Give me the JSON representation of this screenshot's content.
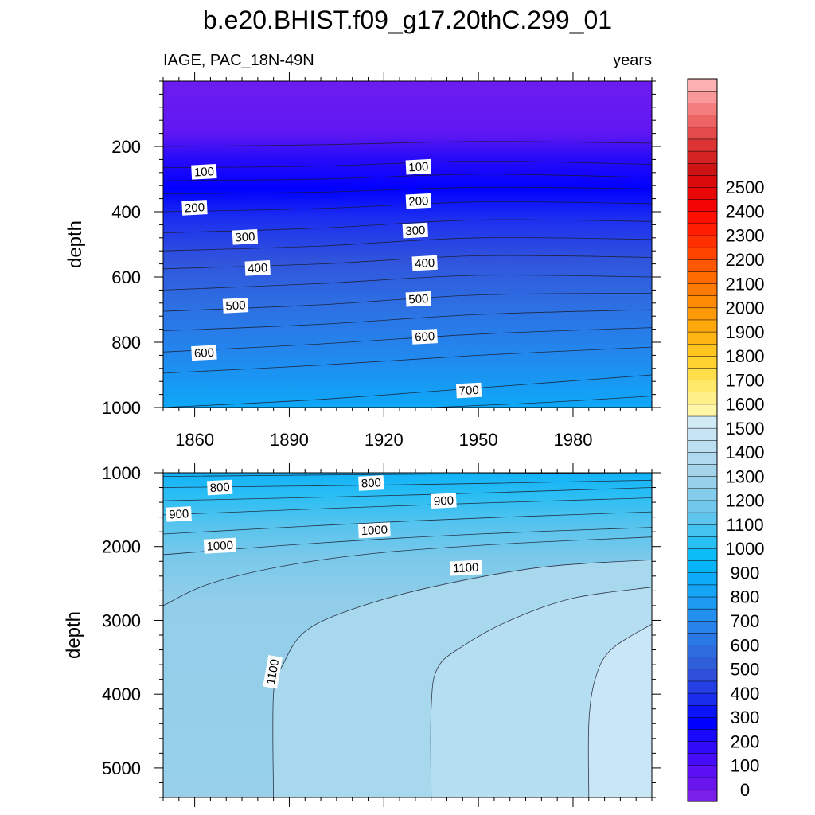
{
  "title": "b.e20.BHIST.f09_g17.20thC.299_01",
  "chart_data": [
    {
      "type": "contour",
      "panel": "upper",
      "left_label": "IAGE, PAC_18N-49N",
      "right_label": "years",
      "ylabel": "depth",
      "xlabel": "",
      "xlim": [
        1850,
        2005
      ],
      "ylim": [
        0,
        1000
      ],
      "y_inverted": true,
      "x_ticks": [
        1860,
        1890,
        1920,
        1950,
        1980
      ],
      "y_ticks": [
        200,
        400,
        600,
        800,
        1000
      ],
      "contour_interval": 25,
      "isolines": [
        {
          "level": 50,
          "x": [
            1850,
            1900,
            1950,
            2005
          ],
          "y": [
            200,
            195,
            185,
            190
          ]
        },
        {
          "level": 100,
          "x": [
            1850,
            1900,
            1950,
            2005
          ],
          "y": [
            265,
            260,
            245,
            255
          ]
        },
        {
          "level": 150,
          "x": [
            1850,
            1900,
            1950,
            2005
          ],
          "y": [
            305,
            300,
            285,
            295
          ]
        },
        {
          "level": 200,
          "x": [
            1850,
            1900,
            1950,
            2005
          ],
          "y": [
            345,
            340,
            325,
            330
          ]
        },
        {
          "level": 250,
          "x": [
            1850,
            1900,
            1950,
            2005
          ],
          "y": [
            400,
            390,
            370,
            375
          ]
        },
        {
          "level": 300,
          "x": [
            1850,
            1900,
            1950,
            2005
          ],
          "y": [
            465,
            450,
            425,
            430
          ]
        },
        {
          "level": 350,
          "x": [
            1850,
            1900,
            1950,
            2005
          ],
          "y": [
            520,
            505,
            480,
            485
          ]
        },
        {
          "level": 400,
          "x": [
            1850,
            1900,
            1950,
            2005
          ],
          "y": [
            575,
            560,
            535,
            540
          ]
        },
        {
          "level": 450,
          "x": [
            1850,
            1900,
            1950,
            2005
          ],
          "y": [
            640,
            620,
            595,
            600
          ]
        },
        {
          "level": 500,
          "x": [
            1850,
            1900,
            1950,
            2005
          ],
          "y": [
            705,
            685,
            655,
            650
          ]
        },
        {
          "level": 550,
          "x": [
            1850,
            1900,
            1950,
            2005
          ],
          "y": [
            765,
            745,
            715,
            700
          ]
        },
        {
          "level": 600,
          "x": [
            1850,
            1900,
            1950,
            2005
          ],
          "y": [
            830,
            805,
            775,
            755
          ]
        },
        {
          "level": 650,
          "x": [
            1850,
            1900,
            1950,
            2005
          ],
          "y": [
            895,
            870,
            840,
            815
          ]
        },
        {
          "level": 700,
          "x": [
            1850,
            1900,
            1950,
            2005
          ],
          "y": [
            1000,
            975,
            940,
            900
          ]
        },
        {
          "level": 725,
          "x": [
            1935,
            1970,
            2005
          ],
          "y": [
            1000,
            985,
            965
          ]
        }
      ],
      "labels": [
        {
          "text": "100",
          "x": 1863,
          "y": 280
        },
        {
          "text": "100",
          "x": 1931,
          "y": 265
        },
        {
          "text": "200",
          "x": 1860,
          "y": 390
        },
        {
          "text": "200",
          "x": 1931,
          "y": 370
        },
        {
          "text": "300",
          "x": 1876,
          "y": 480
        },
        {
          "text": "300",
          "x": 1930,
          "y": 460
        },
        {
          "text": "400",
          "x": 1880,
          "y": 575
        },
        {
          "text": "400",
          "x": 1933,
          "y": 560
        },
        {
          "text": "500",
          "x": 1873,
          "y": 690
        },
        {
          "text": "500",
          "x": 1931,
          "y": 670
        },
        {
          "text": "600",
          "x": 1863,
          "y": 835
        },
        {
          "text": "600",
          "x": 1933,
          "y": 785
        },
        {
          "text": "700",
          "x": 1947,
          "y": 950
        }
      ]
    },
    {
      "type": "contour",
      "panel": "lower",
      "ylabel": "depth",
      "xlabel": "",
      "xlim": [
        1850,
        2005
      ],
      "ylim": [
        1000,
        5400
      ],
      "y_inverted": true,
      "x_ticks": [
        1860,
        1890,
        1920,
        1950,
        1980
      ],
      "y_ticks": [
        1000,
        2000,
        3000,
        4000,
        5000
      ],
      "contour_interval": 50,
      "isolines": [
        {
          "level": 750,
          "x": [
            1850,
            1930,
            2005
          ],
          "y": [
            1050,
            1020,
            1000
          ]
        },
        {
          "level": 800,
          "x": [
            1850,
            1930,
            2005
          ],
          "y": [
            1200,
            1160,
            1100
          ]
        },
        {
          "level": 850,
          "x": [
            1850,
            1930,
            2005
          ],
          "y": [
            1380,
            1300,
            1200
          ]
        },
        {
          "level": 900,
          "x": [
            1850,
            1930,
            2005
          ],
          "y": [
            1570,
            1440,
            1340
          ]
        },
        {
          "level": 950,
          "x": [
            1850,
            1930,
            2005
          ],
          "y": [
            1830,
            1650,
            1530
          ]
        },
        {
          "level": 1000,
          "x": [
            1850,
            1900,
            1950,
            2005
          ],
          "y": [
            2110,
            1950,
            1830,
            1740
          ]
        },
        {
          "level": 1050,
          "x": [
            1850,
            1865,
            1890,
            1920,
            1960,
            2005
          ],
          "y": [
            2800,
            2500,
            2250,
            2080,
            1960,
            1870
          ]
        },
        {
          "level": 1100,
          "x": [
            1885,
            1885,
            1888,
            1895,
            1910,
            1935,
            1970,
            2005
          ],
          "y": [
            5400,
            4000,
            3600,
            3150,
            2850,
            2550,
            2280,
            2180
          ]
        },
        {
          "level": 1150,
          "x": [
            1935,
            1935,
            1937,
            1945,
            1960,
            1980,
            2005
          ],
          "y": [
            5400,
            4200,
            3650,
            3350,
            3000,
            2700,
            2550
          ]
        },
        {
          "level": 1200,
          "x": [
            1985,
            1985,
            1987,
            1992,
            2005
          ],
          "y": [
            5400,
            4400,
            3800,
            3400,
            3050
          ]
        }
      ],
      "labels": [
        {
          "text": "800",
          "x": 1868,
          "y": 1210
        },
        {
          "text": "800",
          "x": 1916,
          "y": 1150
        },
        {
          "text": "900",
          "x": 1855,
          "y": 1570
        },
        {
          "text": "900",
          "x": 1939,
          "y": 1390
        },
        {
          "text": "1000",
          "x": 1868,
          "y": 2000
        },
        {
          "text": "1000",
          "x": 1917,
          "y": 1790
        },
        {
          "text": "1100",
          "x": 1946,
          "y": 2300
        },
        {
          "text": "1100",
          "x": 1885,
          "y": 3700
        }
      ]
    }
  ],
  "colorbar": {
    "levels": [
      "0",
      "100",
      "200",
      "300",
      "400",
      "500",
      "600",
      "700",
      "800",
      "900",
      "1000",
      "1100",
      "1200",
      "1300",
      "1400",
      "1500",
      "1600",
      "1700",
      "1800",
      "1900",
      "2000",
      "2100",
      "2200",
      "2300",
      "2400",
      "2500"
    ],
    "colors": [
      "#7a1fe8",
      "#6a14ee",
      "#5a0ff4",
      "#460cf8",
      "#300af9",
      "#1808fc",
      "#0000ff",
      "#0a14f4",
      "#1a2cec",
      "#2440e4",
      "#3050dc",
      "#2e5ed8",
      "#2c6cde",
      "#2a78e6",
      "#2884ea",
      "#2290ee",
      "#1e9af2",
      "#16a4f6",
      "#0eacf8",
      "#08b4f8",
      "#0cbcf6",
      "#28c0f2",
      "#44c2f0",
      "#5ec6ee",
      "#72c8ec",
      "#84cceb",
      "#96d0ea",
      "#a4d4ec",
      "#b0d8ee",
      "#bcdff2",
      "#c6e4f4",
      "#d0eaf6",
      "#fff6a8",
      "#fff08a",
      "#ffe86a",
      "#ffde4c",
      "#ffd230",
      "#ffc41e",
      "#ffb614",
      "#ffa80e",
      "#ff9a08",
      "#ff8a04",
      "#ff7a02",
      "#ff6a00",
      "#ff5800",
      "#ff4400",
      "#ff3000",
      "#ff1e00",
      "#ff1000",
      "#f40404",
      "#e80808",
      "#d80a0a",
      "#cc1414",
      "#d42222",
      "#dc3434",
      "#e44a4a",
      "#ec6464",
      "#f47e7e",
      "#f89898",
      "#fcb2b2"
    ]
  }
}
